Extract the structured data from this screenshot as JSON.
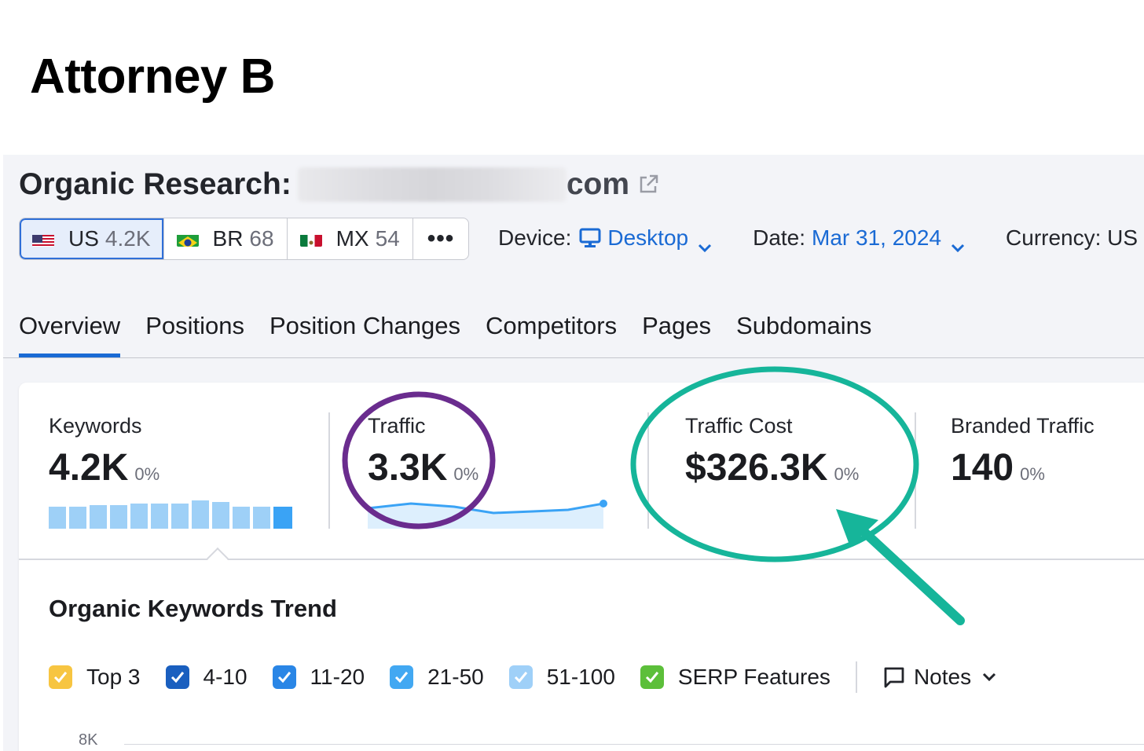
{
  "heading": "Attorney B",
  "header": {
    "title": "Organic Research:",
    "domain_suffix": "com"
  },
  "databases": [
    {
      "code": "US",
      "count": "4.2K"
    },
    {
      "code": "BR",
      "count": "68"
    },
    {
      "code": "MX",
      "count": "54"
    }
  ],
  "db_more": "•••",
  "filters": {
    "device_label": "Device:",
    "device_value": "Desktop",
    "date_label": "Date:",
    "date_value": "Mar 31, 2024",
    "currency_label": "Currency: US"
  },
  "tabs": [
    "Overview",
    "Positions",
    "Position Changes",
    "Competitors",
    "Pages",
    "Subdomains"
  ],
  "metrics": {
    "keywords": {
      "label": "Keywords",
      "value": "4.2K",
      "change": "0%"
    },
    "traffic": {
      "label": "Traffic",
      "value": "3.3K",
      "change": "0%"
    },
    "traffic_cost": {
      "label": "Traffic Cost",
      "value": "$326.3K",
      "change": "0%"
    },
    "branded_traffic": {
      "label": "Branded Traffic",
      "value": "140",
      "change": "0%"
    }
  },
  "section": {
    "title": "Organic Keywords Trend",
    "legend": [
      "Top 3",
      "4-10",
      "11-20",
      "21-50",
      "51-100",
      "SERP Features"
    ],
    "notes": "Notes",
    "y_tick": "8K"
  },
  "colors": {
    "accent": "#1a6ad4",
    "legend_top3": "#f7c541",
    "legend_4_10": "#1a5fbf",
    "legend_11_20": "#2a86e6",
    "legend_21_50": "#42a8f2",
    "legend_51_100": "#9fd0f8",
    "legend_serp": "#5cbf3a",
    "annotation_purple": "#6a2c8e",
    "annotation_teal": "#16b59a"
  }
}
